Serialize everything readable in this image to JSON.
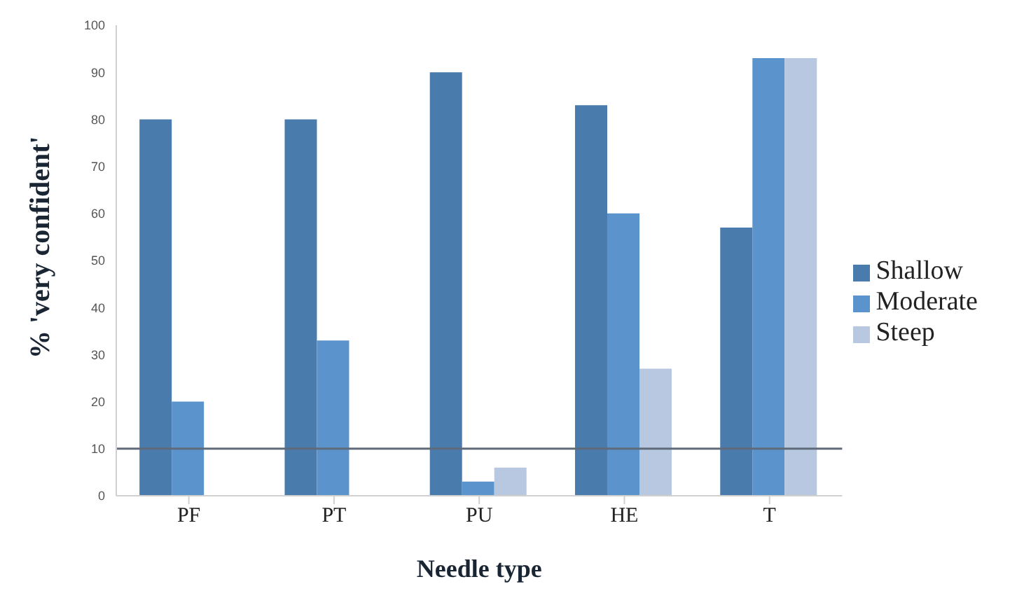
{
  "chart_data": {
    "type": "bar",
    "xlabel": "Needle type",
    "ylabel": "% 'very confident'",
    "categories": [
      "PF",
      "PT",
      "PU",
      "HE",
      "T"
    ],
    "series": [
      {
        "name": "Shallow",
        "color": "#4a7bad",
        "values": [
          80,
          80,
          90,
          83,
          57
        ]
      },
      {
        "name": "Moderate",
        "color": "#5b93cc",
        "values": [
          20,
          33,
          3,
          60,
          93
        ]
      },
      {
        "name": "Steep",
        "color": "#b7c8e0",
        "values": [
          null,
          null,
          6,
          27,
          93
        ]
      }
    ],
    "ylim": [
      0,
      100
    ],
    "yticks": [
      0,
      10,
      20,
      30,
      40,
      50,
      60,
      70,
      80,
      90,
      100
    ],
    "ref_lines": [
      {
        "axis": "y",
        "value": 10,
        "color": "#5f6b7a"
      }
    ],
    "grid": false,
    "legend": "right"
  }
}
